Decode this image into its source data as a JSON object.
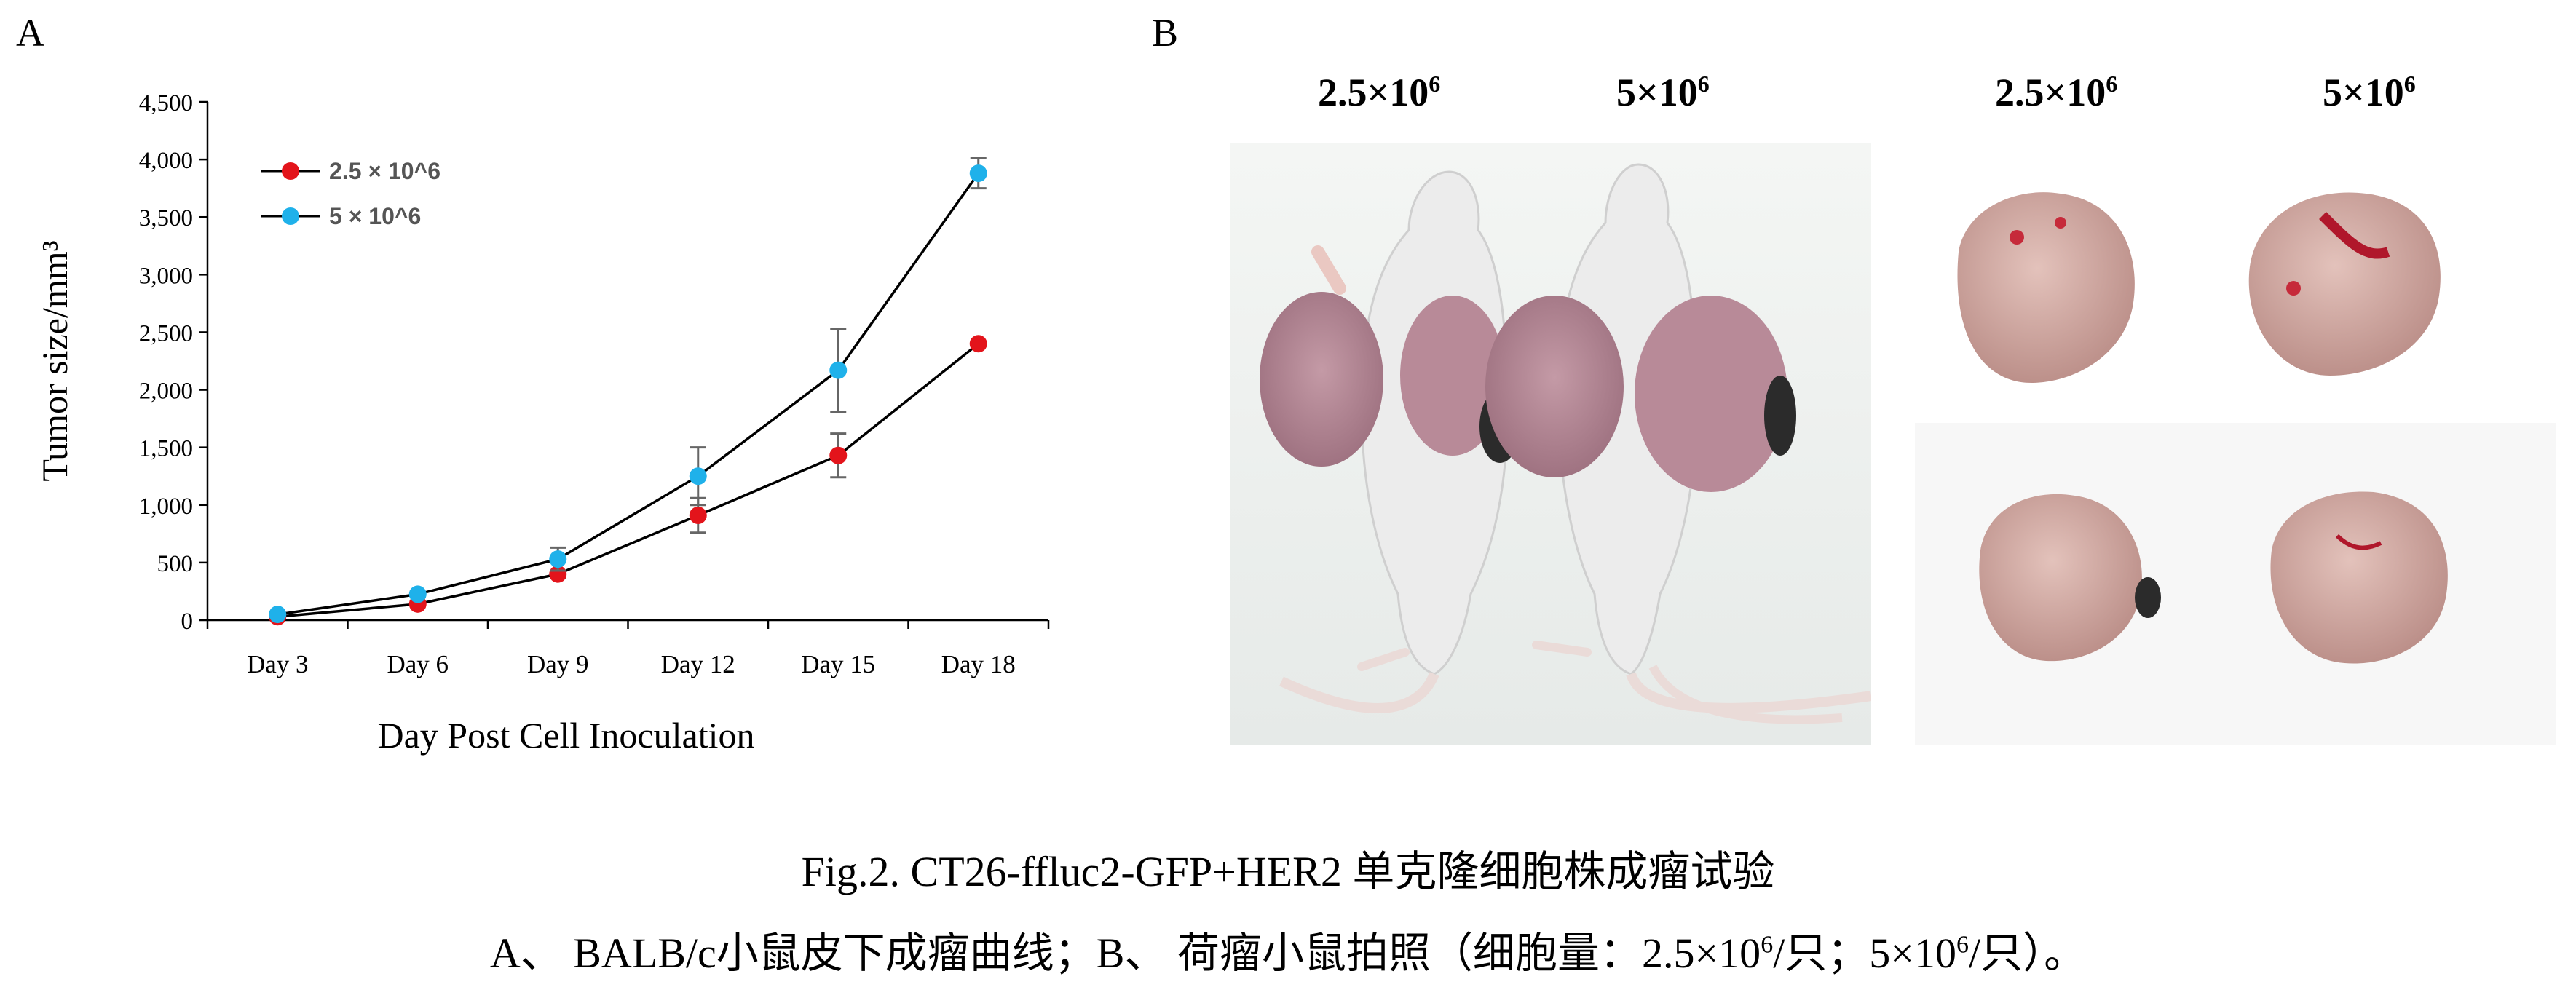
{
  "panel_labels": {
    "a": "A",
    "b": "B"
  },
  "chart_data": {
    "type": "line",
    "categories": [
      "Day 3",
      "Day 6",
      "Day 9",
      "Day 12",
      "Day 15",
      "Day 18"
    ],
    "xlabel": "Day Post Cell Inoculation",
    "ylabel": "Tumor size/mm³",
    "ylim": [
      0,
      4500
    ],
    "yticks": [
      0,
      500,
      1000,
      1500,
      2000,
      2500,
      3000,
      3500,
      4000,
      4500
    ],
    "ytick_labels": [
      "0",
      "500",
      "1,000",
      "1,500",
      "2,000",
      "2,500",
      "3,000",
      "3,500",
      "4,000",
      "4,500"
    ],
    "grid": false,
    "legend_position": "top-left",
    "series": [
      {
        "name": "2.5 × 10^6",
        "color": "#e3141b",
        "values": [
          30,
          140,
          400,
          910,
          1430,
          2400
        ],
        "errors": [
          10,
          20,
          30,
          150,
          190,
          0
        ]
      },
      {
        "name": "5 × 10^6",
        "color": "#1fb1ea",
        "values": [
          50,
          225,
          530,
          1250,
          2170,
          3880
        ],
        "errors": [
          10,
          20,
          100,
          250,
          360,
          130
        ]
      }
    ]
  },
  "photos": {
    "mice_labels": [
      "2.5×10",
      "5×10"
    ],
    "tumor_labels": [
      "2.5×10",
      "5×10"
    ],
    "exponent": "6"
  },
  "caption": {
    "line1": "Fig.2. CT26-ffluc2-GFP+HER2 单克隆细胞株成瘤试验",
    "line2_a": "A、 BALB/c小鼠皮下成瘤曲线；B、 荷瘤小鼠拍照（细胞量：2.5×10",
    "line2_b": "/只；5×10",
    "line2_c": "/只）。",
    "exp": "6"
  }
}
